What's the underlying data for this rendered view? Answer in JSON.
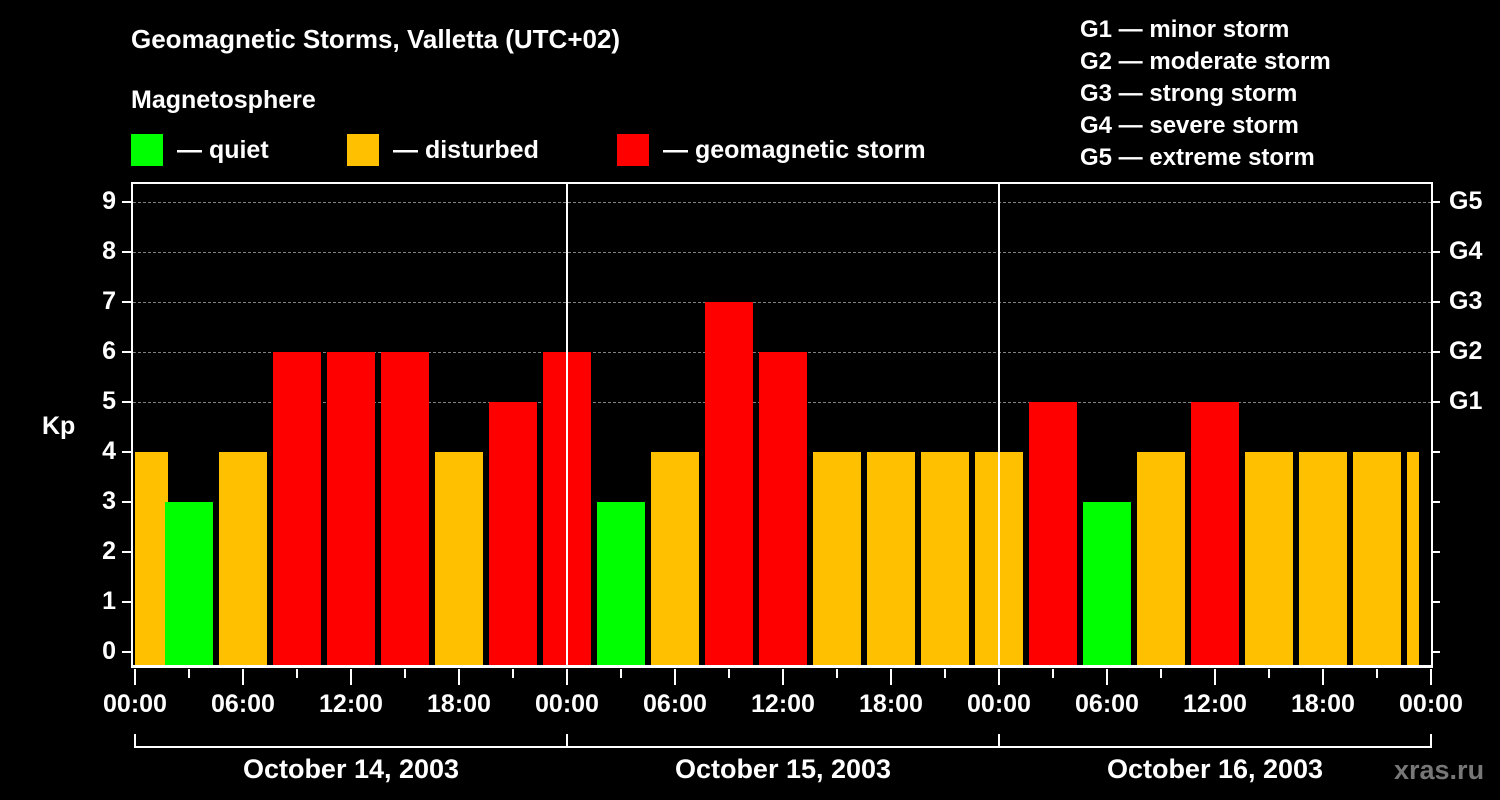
{
  "title": "Geomagnetic Storms, Valletta (UTC+02)",
  "subtitle": "Magnetosphere",
  "legend": [
    {
      "label": "— quiet",
      "color": "#00ff00"
    },
    {
      "label": "— disturbed",
      "color": "#ffc000"
    },
    {
      "label": "— geomagnetic storm",
      "color": "#ff0000"
    }
  ],
  "g_scale": [
    "G1 — minor storm",
    "G2 — moderate storm",
    "G3 — strong storm",
    "G4 — severe storm",
    "G5 — extreme storm"
  ],
  "y_axis_label": "Kp",
  "watermark": "xras.ru",
  "chart_data": {
    "type": "bar",
    "title": "Geomagnetic Storms, Valletta (UTC+02)",
    "xlabel": "",
    "ylabel": "Kp",
    "ylim": [
      0,
      9
    ],
    "yticks": [
      0,
      1,
      2,
      3,
      4,
      5,
      6,
      7,
      8,
      9
    ],
    "right_axis_labels": [
      {
        "kp": 5,
        "label": "G1"
      },
      {
        "kp": 6,
        "label": "G2"
      },
      {
        "kp": 7,
        "label": "G3"
      },
      {
        "kp": 8,
        "label": "G4"
      },
      {
        "kp": 9,
        "label": "G5"
      }
    ],
    "grid": "dashed horizontal at Kp 5-9",
    "x_tick_labels": [
      "00:00",
      "06:00",
      "12:00",
      "18:00",
      "00:00",
      "06:00",
      "12:00",
      "18:00",
      "00:00",
      "06:00",
      "12:00",
      "18:00",
      "00:00"
    ],
    "dates": [
      "October 14, 2003",
      "October 15, 2003",
      "October 16, 2003"
    ],
    "interval_hours": 3,
    "categories": [
      "Oct14 02:00",
      "Oct14 05:00",
      "Oct14 08:00",
      "Oct14 11:00",
      "Oct14 14:00",
      "Oct14 17:00",
      "Oct14 20:00",
      "Oct14 23:00",
      "Oct15 02:00",
      "Oct15 05:00",
      "Oct15 08:00",
      "Oct15 11:00",
      "Oct15 14:00",
      "Oct15 17:00",
      "Oct15 20:00",
      "Oct15 23:00",
      "Oct16 02:00",
      "Oct16 05:00",
      "Oct16 08:00",
      "Oct16 11:00",
      "Oct16 14:00",
      "Oct16 17:00",
      "Oct16 20:00",
      "Oct16 23:00"
    ],
    "leading_partial_value": 4,
    "values": [
      3,
      4,
      6,
      6,
      6,
      4,
      5,
      6,
      3,
      4,
      7,
      6,
      4,
      4,
      4,
      4,
      5,
      3,
      4,
      5,
      4,
      4,
      4,
      4
    ],
    "status_colors": {
      "quiet": "#00ff00",
      "disturbed": "#ffc000",
      "storm": "#ff0000"
    }
  }
}
